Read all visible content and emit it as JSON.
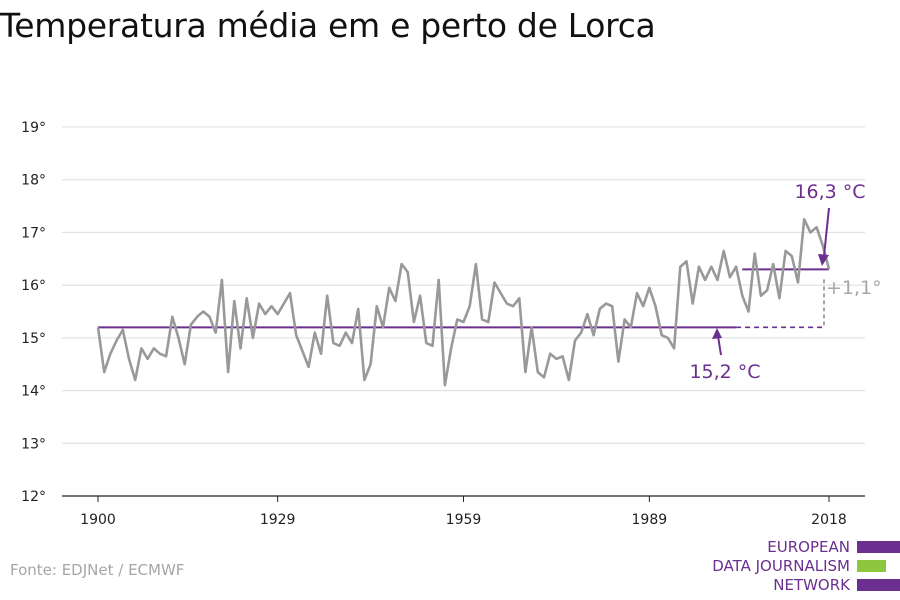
{
  "title": "Temperatura média em e perto de Lorca",
  "source": "Fonte: EDJNet / ECMWF",
  "logo": {
    "line1": "EUROPEAN",
    "line2": "DATA JOURNALISM",
    "line3": "NETWORK",
    "purple": "#6b2f8f",
    "green": "#8dc63f"
  },
  "chart_data": {
    "type": "line",
    "title": "Temperatura média em e perto de Lorca",
    "xlabel": "",
    "ylabel": "",
    "xlim": [
      1900,
      2018
    ],
    "ylim": [
      12,
      19
    ],
    "x_ticks": [
      1900,
      1929,
      1959,
      1989,
      2018
    ],
    "x_tick_labels": [
      "1900",
      "1929",
      "1959",
      "1989",
      "2018"
    ],
    "y_ticks": [
      12,
      13,
      14,
      15,
      16,
      17,
      18,
      19
    ],
    "y_tick_labels": [
      "12°",
      "13°",
      "14°",
      "15°",
      "16°",
      "17°",
      "18°",
      "19°"
    ],
    "grid": true,
    "series": [
      {
        "color": "#999999",
        "x": [
          1900,
          1901,
          1902,
          1903,
          1904,
          1905,
          1906,
          1907,
          1908,
          1909,
          1910,
          1911,
          1912,
          1913,
          1914,
          1915,
          1916,
          1917,
          1918,
          1919,
          1920,
          1921,
          1922,
          1923,
          1924,
          1925,
          1926,
          1927,
          1928,
          1929,
          1930,
          1931,
          1932,
          1933,
          1934,
          1935,
          1936,
          1937,
          1938,
          1939,
          1940,
          1941,
          1942,
          1943,
          1944,
          1945,
          1946,
          1947,
          1948,
          1949,
          1950,
          1951,
          1952,
          1953,
          1954,
          1955,
          1956,
          1957,
          1958,
          1959,
          1960,
          1961,
          1962,
          1963,
          1964,
          1965,
          1966,
          1967,
          1968,
          1969,
          1970,
          1971,
          1972,
          1973,
          1974,
          1975,
          1976,
          1977,
          1978,
          1979,
          1980,
          1981,
          1982,
          1983,
          1984,
          1985,
          1986,
          1987,
          1988,
          1989,
          1990,
          1991,
          1992,
          1993,
          1994,
          1995,
          1996,
          1997,
          1998,
          1999,
          2000,
          2001,
          2002,
          2003,
          2004,
          2005,
          2006,
          2007,
          2008,
          2009,
          2010,
          2011,
          2012,
          2013,
          2014,
          2015,
          2016,
          2017,
          2018
        ],
        "values": [
          15.2,
          14.35,
          14.7,
          14.95,
          15.15,
          14.6,
          14.2,
          14.8,
          14.6,
          14.8,
          14.7,
          14.65,
          15.4,
          15.0,
          14.5,
          15.25,
          15.4,
          15.5,
          15.4,
          15.1,
          16.1,
          14.35,
          15.7,
          14.8,
          15.75,
          15.0,
          15.65,
          15.45,
          15.6,
          15.45,
          15.65,
          15.85,
          15.05,
          14.75,
          14.45,
          15.1,
          14.7,
          15.8,
          14.9,
          14.85,
          15.1,
          14.9,
          15.55,
          14.2,
          14.5,
          15.6,
          15.2,
          15.95,
          15.7,
          16.4,
          16.25,
          15.3,
          15.8,
          14.9,
          14.85,
          16.1,
          14.1,
          14.8,
          15.35,
          15.3,
          15.6,
          16.4,
          15.35,
          15.3,
          16.05,
          15.85,
          15.65,
          15.6,
          15.75,
          14.35,
          15.2,
          14.35,
          14.25,
          14.7,
          14.6,
          14.65,
          14.2,
          14.95,
          15.1,
          15.45,
          15.05,
          15.55,
          15.65,
          15.6,
          14.55,
          15.35,
          15.2,
          15.85,
          15.6,
          15.95,
          15.6,
          15.05,
          15.0,
          14.8,
          16.35,
          16.45,
          15.65,
          16.35,
          16.1,
          16.35,
          16.1,
          16.65,
          16.15,
          16.35,
          15.8,
          15.5,
          16.6,
          15.8,
          15.9,
          16.4,
          15.75,
          16.65,
          16.55,
          16.05,
          17.25,
          17.0,
          17.1,
          16.75,
          16.3
        ]
      }
    ],
    "reference_lines": [
      {
        "value": 15.2,
        "x_start": 1900,
        "x_end": 2003,
        "label": "15,2 °C",
        "color": "#6b2f8f"
      },
      {
        "value": 16.3,
        "x_start": 2004,
        "x_end": 2018,
        "label": "16,3 °C",
        "color": "#6b2f8f"
      }
    ],
    "difference": {
      "label": "+1,1°",
      "color": "#a6a6a6"
    }
  }
}
